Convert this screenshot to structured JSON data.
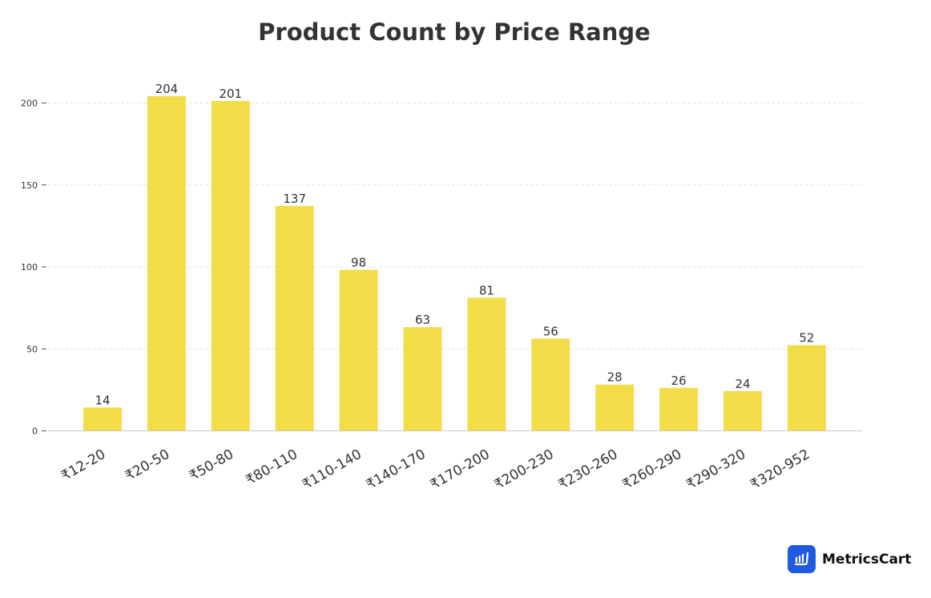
{
  "chart_data": {
    "type": "bar",
    "title": "Product Count by Price Range",
    "xlabel": "",
    "ylabel": "",
    "categories": [
      "₹12-20",
      "₹20-50",
      "₹50-80",
      "₹80-110",
      "₹110-140",
      "₹140-170",
      "₹170-200",
      "₹200-230",
      "₹230-260",
      "₹260-290",
      "₹290-320",
      "₹320-952"
    ],
    "values": [
      14,
      204,
      201,
      137,
      98,
      63,
      81,
      56,
      28,
      26,
      24,
      52
    ],
    "ylim": [
      0,
      200
    ],
    "yticks": [
      0,
      50,
      100,
      150,
      200
    ],
    "grid": true,
    "bar_color": "#f2dd48",
    "data_labels": true
  },
  "brand": {
    "name": "MetricsCart",
    "color": "#1f5ae0"
  }
}
